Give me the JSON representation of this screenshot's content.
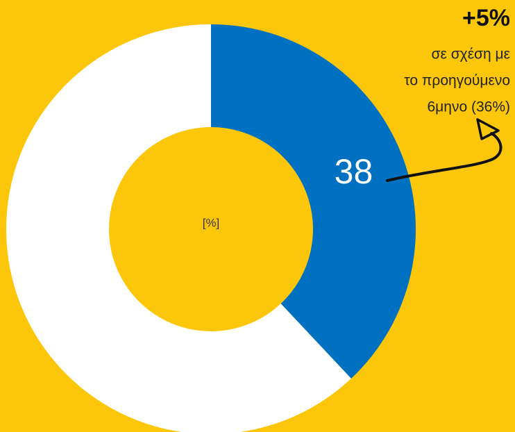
{
  "chart_data": {
    "type": "donut",
    "values": [
      38,
      62
    ],
    "colors": [
      "#0070c0",
      "#ffffff"
    ],
    "center_label": "[%]",
    "annotation": {
      "title": "+5%",
      "lines": [
        "σε σχέση με",
        "το προηγούμενο",
        "6μηνο (36%)"
      ]
    }
  }
}
